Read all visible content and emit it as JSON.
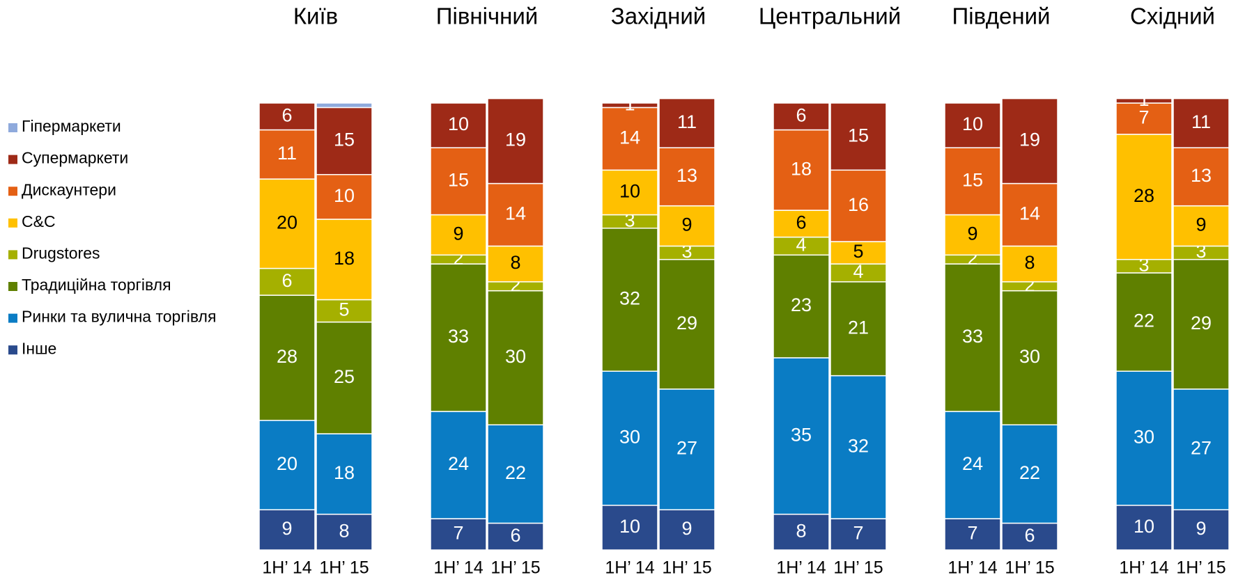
{
  "chart_data": {
    "type": "bar",
    "stacked": true,
    "ylim": [
      0,
      100
    ],
    "groups": [
      {
        "title": "Київ",
        "categories": [
          "1H’ 14",
          "1H’ 15"
        ]
      },
      {
        "title": "Північний",
        "categories": [
          "1H’ 14",
          "1H’ 15"
        ]
      },
      {
        "title": "Західний",
        "categories": [
          "1H’ 14",
          "1H’ 15"
        ]
      },
      {
        "title": "Центральний",
        "categories": [
          "1H’ 14",
          "1H’ 15"
        ]
      },
      {
        "title": "Південий",
        "categories": [
          "1H’ 14",
          "1H’ 15"
        ]
      },
      {
        "title": "Східний",
        "categories": [
          "1H’ 14",
          "1H’ 15"
        ]
      }
    ],
    "series": [
      {
        "name": "Гіпермаркети",
        "color": "#8faadc",
        "label_color": "#ffffff",
        "values": [
          [
            0,
            1
          ],
          [
            0,
            0
          ],
          [
            0,
            0
          ],
          [
            0,
            0
          ],
          [
            0,
            0
          ],
          [
            0,
            0
          ]
        ]
      },
      {
        "name": "Супермаркети",
        "color": "#9e2a17",
        "label_color": "#ffffff",
        "values": [
          [
            6,
            15
          ],
          [
            10,
            19
          ],
          [
            1,
            11
          ],
          [
            6,
            15
          ],
          [
            10,
            19
          ],
          [
            1,
            11
          ]
        ]
      },
      {
        "name": "Дискаунтери",
        "color": "#e46014",
        "label_color": "#ffffff",
        "values": [
          [
            11,
            10
          ],
          [
            15,
            14
          ],
          [
            14,
            13
          ],
          [
            18,
            16
          ],
          [
            15,
            14
          ],
          [
            7,
            13
          ]
        ]
      },
      {
        "name": "C&C",
        "color": "#ffc000",
        "label_color": "#000000",
        "values": [
          [
            20,
            18
          ],
          [
            9,
            8
          ],
          [
            10,
            9
          ],
          [
            6,
            5
          ],
          [
            9,
            8
          ],
          [
            28,
            9
          ]
        ]
      },
      {
        "name": "Drugstores",
        "color": "#a5b000",
        "label_color": "#ffffff",
        "values": [
          [
            6,
            5
          ],
          [
            2,
            2
          ],
          [
            3,
            3
          ],
          [
            4,
            4
          ],
          [
            2,
            2
          ],
          [
            3,
            3
          ]
        ]
      },
      {
        "name": "Традиційна торгівля",
        "color": "#5f8000",
        "label_color": "#ffffff",
        "values": [
          [
            28,
            25
          ],
          [
            33,
            30
          ],
          [
            32,
            29
          ],
          [
            23,
            21
          ],
          [
            33,
            30
          ],
          [
            22,
            29
          ]
        ]
      },
      {
        "name": "Ринки та вулична торгівля",
        "color": "#0a7cc4",
        "label_color": "#ffffff",
        "values": [
          [
            20,
            18
          ],
          [
            24,
            22
          ],
          [
            30,
            27
          ],
          [
            35,
            32
          ],
          [
            24,
            22
          ],
          [
            30,
            27
          ]
        ]
      },
      {
        "name": "Інше",
        "color": "#2a4a8c",
        "label_color": "#ffffff",
        "values": [
          [
            9,
            8
          ],
          [
            7,
            6
          ],
          [
            10,
            9
          ],
          [
            8,
            7
          ],
          [
            7,
            6
          ],
          [
            10,
            9
          ]
        ]
      }
    ]
  }
}
